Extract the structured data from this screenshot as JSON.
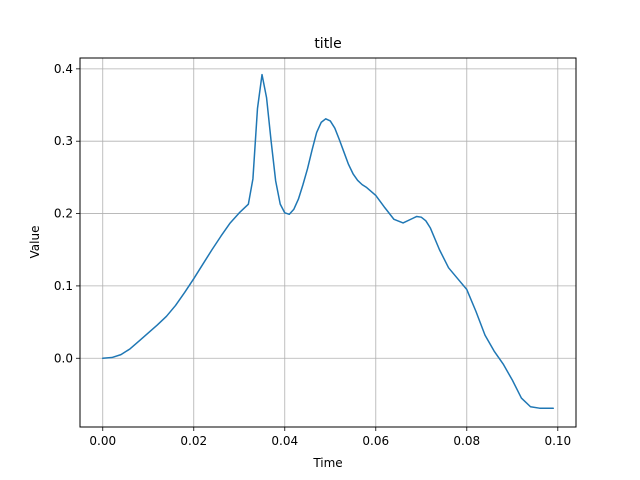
{
  "chart_data": {
    "type": "line",
    "title": "title",
    "xlabel": "Time",
    "ylabel": "Value",
    "xlim": [
      -0.005,
      0.104
    ],
    "ylim": [
      -0.095,
      0.415
    ],
    "xticks": [
      0.0,
      0.02,
      0.04,
      0.06,
      0.08,
      0.1
    ],
    "xtick_labels": [
      "0.00",
      "0.02",
      "0.04",
      "0.06",
      "0.08",
      "0.10"
    ],
    "yticks": [
      0.0,
      0.1,
      0.2,
      0.3,
      0.4
    ],
    "ytick_labels": [
      "0.0",
      "0.1",
      "0.2",
      "0.3",
      "0.4"
    ],
    "grid": true,
    "series": [
      {
        "color": "#1f77b4",
        "x": [
          0.0,
          0.002,
          0.004,
          0.006,
          0.008,
          0.01,
          0.012,
          0.014,
          0.016,
          0.018,
          0.02,
          0.022,
          0.024,
          0.026,
          0.028,
          0.03,
          0.032,
          0.033,
          0.034,
          0.035,
          0.036,
          0.037,
          0.038,
          0.039,
          0.04,
          0.041,
          0.042,
          0.043,
          0.044,
          0.045,
          0.046,
          0.047,
          0.048,
          0.049,
          0.05,
          0.051,
          0.052,
          0.053,
          0.054,
          0.055,
          0.056,
          0.057,
          0.058,
          0.06,
          0.062,
          0.064,
          0.066,
          0.068,
          0.069,
          0.07,
          0.071,
          0.072,
          0.074,
          0.076,
          0.078,
          0.08,
          0.082,
          0.084,
          0.086,
          0.088,
          0.09,
          0.092,
          0.094,
          0.096,
          0.098,
          0.099
        ],
        "y": [
          0.0,
          0.001,
          0.005,
          0.013,
          0.024,
          0.035,
          0.046,
          0.058,
          0.073,
          0.091,
          0.11,
          0.13,
          0.15,
          0.169,
          0.187,
          0.201,
          0.213,
          0.248,
          0.345,
          0.392,
          0.36,
          0.3,
          0.245,
          0.213,
          0.201,
          0.199,
          0.206,
          0.22,
          0.24,
          0.262,
          0.288,
          0.312,
          0.326,
          0.331,
          0.328,
          0.318,
          0.302,
          0.285,
          0.268,
          0.255,
          0.246,
          0.24,
          0.236,
          0.225,
          0.208,
          0.192,
          0.187,
          0.193,
          0.196,
          0.195,
          0.19,
          0.18,
          0.15,
          0.125,
          0.11,
          0.095,
          0.065,
          0.032,
          0.01,
          -0.008,
          -0.03,
          -0.055,
          -0.067,
          -0.069,
          -0.069,
          -0.069
        ]
      }
    ]
  }
}
